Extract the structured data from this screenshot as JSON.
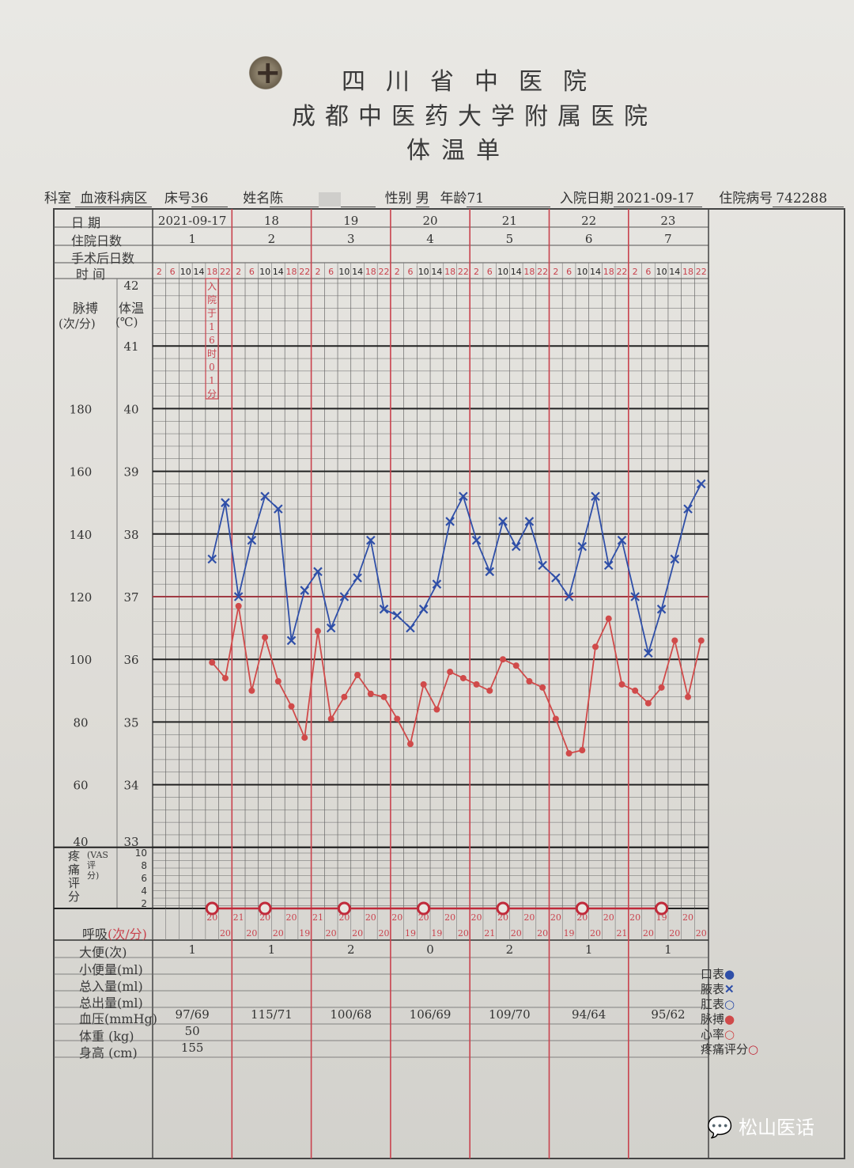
{
  "header": {
    "hospital_line1": "四川省中医院",
    "hospital_line2": "成都中医药大学附属医院",
    "form_title": "体温单"
  },
  "patient": {
    "department_label": "科室",
    "department": "血液科病区",
    "bed_label": "床号",
    "bed": "36",
    "name_label": "姓名",
    "name": "陈",
    "sex_label": "性别",
    "sex": "男",
    "age_label": "年龄",
    "age": "71",
    "admit_label": "入院日期",
    "admit_date": "2021-09-17",
    "record_label": "住院病号",
    "record_no": "742288"
  },
  "table": {
    "row_labels": {
      "date": "日 期",
      "hospital_days": "住院日数",
      "post_op_days": "手术后日数",
      "time": "时 间",
      "pulse": "脉搏",
      "pulse_unit": "(次/分)",
      "temp": "体温",
      "temp_unit": "(℃)",
      "pain": "疼痛评分",
      "vas": "(VAS评分)",
      "resp": "呼吸",
      "resp_unit": "(次/分)",
      "stool": "大便(次)",
      "urine": "小便量(ml)",
      "intake": "总入量(ml)",
      "output": "总出量(ml)",
      "bp": "血压(mmHg)",
      "weight": "体重 (kg)",
      "height": "身高 (cm)"
    },
    "dates": [
      "2021-09-17",
      "18",
      "19",
      "20",
      "21",
      "22",
      "23"
    ],
    "hospital_days": [
      "1",
      "2",
      "3",
      "4",
      "5",
      "6",
      "7"
    ],
    "times": [
      "2",
      "6",
      "10",
      "14",
      "18",
      "22"
    ],
    "admission_note": "入院于16时01分",
    "stool": [
      "1",
      "1",
      "2",
      "0",
      "2",
      "1",
      "1"
    ],
    "bp": [
      "97/69",
      "115/71",
      "100/68",
      "106/69",
      "109/70",
      "94/64",
      "95/62"
    ],
    "weight": [
      "50",
      "",
      "",
      "",
      "",
      "",
      ""
    ],
    "height": [
      "155",
      "",
      "",
      "",
      "",
      "",
      ""
    ],
    "pain_ticks": [
      "10",
      "8",
      "6",
      "4",
      "2"
    ],
    "pulse_ticks": [
      "180",
      "160",
      "140",
      "120",
      "100",
      "80",
      "60",
      "40"
    ],
    "temp_ticks": [
      "42",
      "41",
      "40",
      "39",
      "38",
      "37",
      "36",
      "35",
      "34",
      "33"
    ]
  },
  "legend": [
    {
      "label": "口表",
      "symbol": "●",
      "color": "#2f4fa8"
    },
    {
      "label": "腋表",
      "symbol": "✕",
      "color": "#2f4fa8"
    },
    {
      "label": "肛表",
      "symbol": "○",
      "color": "#2f4fa8"
    },
    {
      "label": "脉搏",
      "symbol": "●",
      "color": "#d04a4a"
    },
    {
      "label": "心率",
      "symbol": "○",
      "color": "#d04a4a"
    },
    {
      "label": "疼痛评分",
      "symbol": "○",
      "color": "#c02a3a"
    }
  ],
  "watermark": "松山医话",
  "chart_data": {
    "type": "line",
    "title": "体温单 (Temperature / Pulse Chart)",
    "x_label": "Date / time (every 4h: 2,6,10,14,18,22)",
    "x": [
      "09-17 18",
      "09-17 22",
      "09-18 2",
      "09-18 6",
      "09-18 10",
      "09-18 14",
      "09-18 18",
      "09-18 22",
      "09-19 2",
      "09-19 6",
      "09-19 10",
      "09-19 14",
      "09-19 18",
      "09-19 22",
      "09-20 2",
      "09-20 6",
      "09-20 10",
      "09-20 14",
      "09-20 18",
      "09-20 22",
      "09-21 2",
      "09-21 6",
      "09-21 10",
      "09-21 14",
      "09-21 18",
      "09-21 22",
      "09-22 2",
      "09-22 6",
      "09-22 10",
      "09-22 14",
      "09-22 18",
      "09-22 22",
      "09-23 2",
      "09-23 6",
      "09-23 10",
      "09-23 14",
      "09-23 18",
      "09-23 22"
    ],
    "series": [
      {
        "name": "腋表体温 (℃)",
        "color": "#2f4fa8",
        "marker": "x",
        "values": [
          37.6,
          38.5,
          37.0,
          37.9,
          38.6,
          38.4,
          36.3,
          37.1,
          37.4,
          36.5,
          37.0,
          37.3,
          37.9,
          36.8,
          36.7,
          36.5,
          36.8,
          37.2,
          38.2,
          38.6,
          37.9,
          37.4,
          38.2,
          37.8,
          38.2,
          37.5,
          37.3,
          37.0,
          37.8,
          38.6,
          37.5,
          37.9,
          37.0,
          36.1,
          36.8,
          37.6,
          38.4,
          38.8
        ]
      },
      {
        "name": "脉搏 (次/分)",
        "color": "#d04a4a",
        "marker": "dot",
        "values": [
          99,
          94,
          117,
          90,
          107,
          93,
          85,
          75,
          109,
          81,
          88,
          95,
          89,
          88,
          81,
          73,
          92,
          84,
          96,
          94,
          92,
          90,
          100,
          98,
          93,
          91,
          81,
          70,
          71,
          104,
          113,
          92,
          90,
          86,
          91,
          106,
          88,
          106
        ]
      },
      {
        "name": "呼吸 (次/分)",
        "color": "#c9434e",
        "values": [
          20,
          20,
          21,
          20,
          20,
          20,
          20,
          19,
          21,
          20,
          20,
          20,
          20,
          20,
          20,
          19,
          20,
          19,
          20,
          20,
          20,
          21,
          20,
          20,
          20,
          20,
          20,
          19,
          20,
          20,
          20,
          21,
          20,
          20,
          19,
          20,
          20,
          20
        ]
      },
      {
        "name": "疼痛评分 (VAS)",
        "color": "#c02a3a",
        "marker": "circle",
        "x": [
          "09-17 18",
          "09-18 10",
          "09-19 10",
          "09-20 10",
          "09-21 10",
          "09-22 10",
          "09-23 10"
        ],
        "values": [
          0,
          0,
          0,
          0,
          0,
          0,
          0
        ]
      }
    ],
    "y_temp_range": [
      33,
      42
    ],
    "y_pulse_range": [
      40,
      180
    ],
    "reference_line_temp": 37,
    "grid": true
  }
}
